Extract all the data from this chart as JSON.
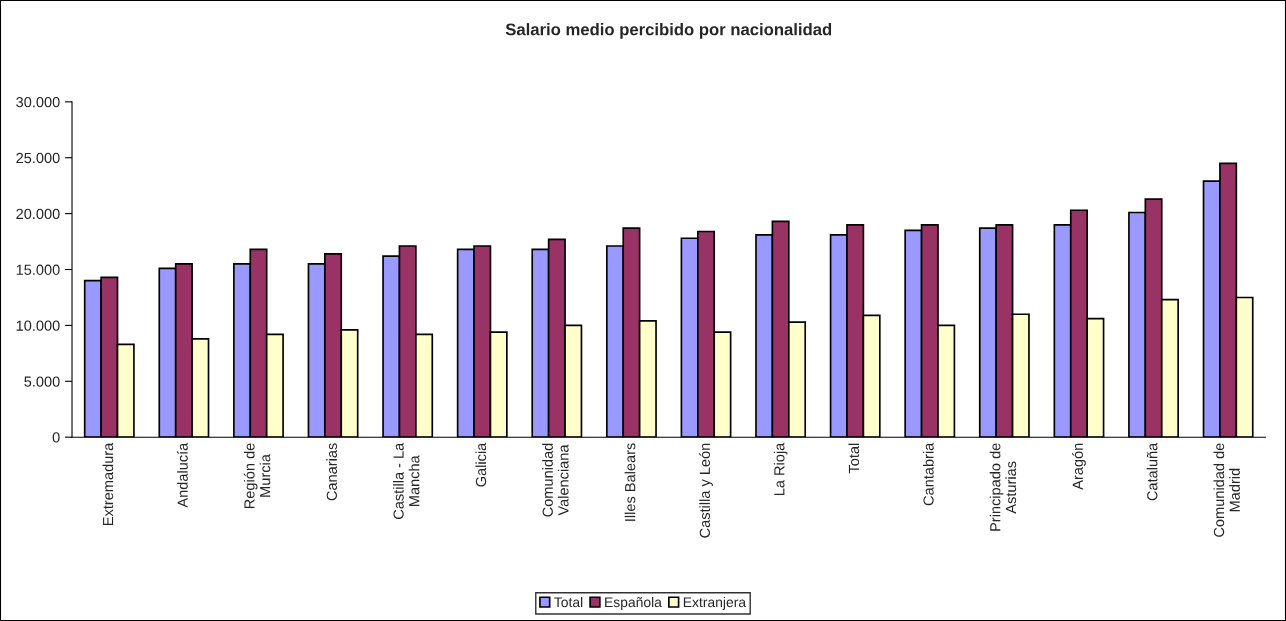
{
  "chart_data": {
    "type": "bar",
    "title": "Salario medio percibido por nacionalidad",
    "categories": [
      "Extremadura",
      "Andalucía",
      "Región de\nMurcia",
      "Canarias",
      "Castilla - La\nMancha",
      "Galicia",
      "Comunidad\nValenciana",
      "Illes Balears",
      "Castilla y León",
      "La Rioja",
      "Total",
      "Cantabria",
      "Principado de\nAsturias",
      "Aragón",
      "Cataluña",
      "Comunidad de\nMadrid"
    ],
    "series": [
      {
        "name": "Total",
        "color": "#9999ff",
        "values": [
          14000,
          15100,
          15500,
          15500,
          16200,
          16800,
          16800,
          17100,
          17800,
          18100,
          18100,
          18500,
          18700,
          19000,
          20100,
          22900
        ]
      },
      {
        "name": "Española",
        "color": "#993366",
        "values": [
          14300,
          15500,
          16800,
          16400,
          17100,
          17100,
          17700,
          18700,
          18400,
          19300,
          19000,
          19000,
          19000,
          20300,
          21300,
          24500
        ]
      },
      {
        "name": "Extranjera",
        "color": "#ffffcc",
        "values": [
          8300,
          8800,
          9200,
          9600,
          9200,
          9400,
          10000,
          10400,
          9400,
          10300,
          10900,
          10000,
          11000,
          10600,
          12300,
          12500
        ]
      }
    ],
    "ylim": [
      0,
      30000
    ],
    "yticks": [
      0,
      {
        "value": 5000,
        "label": "5.000"
      },
      {
        "value": 10000,
        "label": "10.000"
      },
      {
        "value": 15000,
        "label": "15.000"
      },
      {
        "value": 20000,
        "label": "20.000"
      },
      {
        "value": 25000,
        "label": "25.000"
      },
      {
        "value": 30000,
        "label": "30.000"
      }
    ],
    "grid": false,
    "legend": "bottom"
  }
}
